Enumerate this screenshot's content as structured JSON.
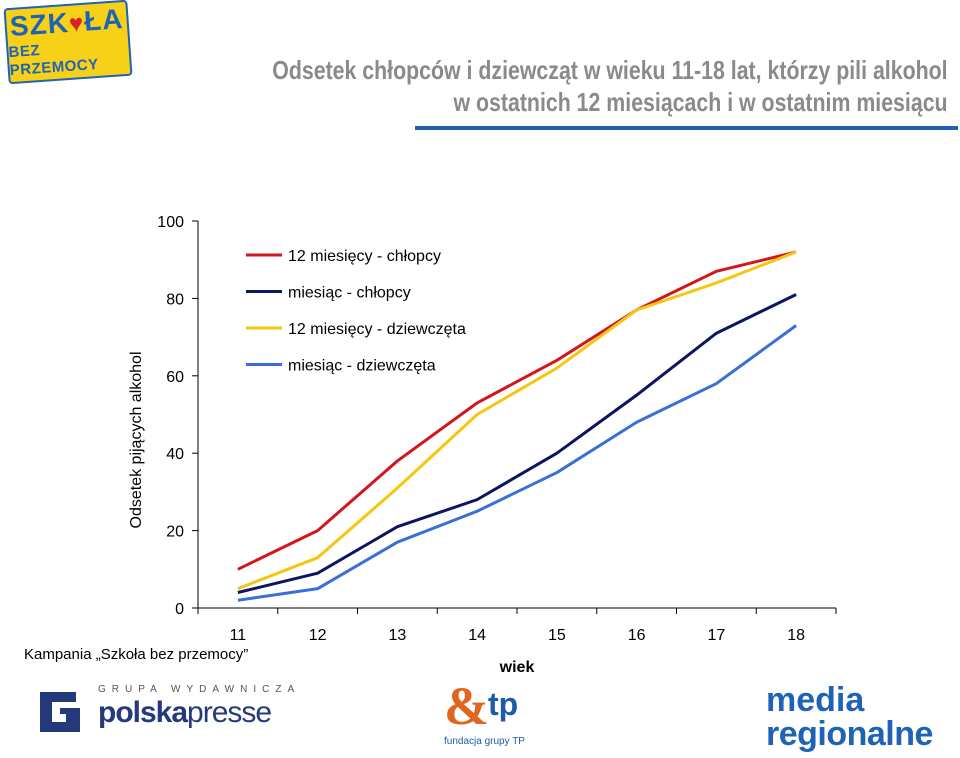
{
  "logos": {
    "szkola_line1": "SZK",
    "szkola_heart": "♥",
    "szkola_line1b": "ŁA",
    "szkola_line2": "BEZ PRZEMOCY",
    "polska_grupa": "GRUPA WYDAWNICZA",
    "polska_brand_a": "polska",
    "polska_brand_b": "presse",
    "tp_mark": "&",
    "tp_text": "tp",
    "tp_foundation": "fundacja grupy TP",
    "media_line1": "media",
    "media_line2": "regionalne"
  },
  "header": {
    "title_line1": "Odsetek chłopców i dziewcząt w wieku 11-18 lat, którzy pili alkohol",
    "title_line2": "w ostatnich 12 miesiącach i w ostatnim miesiącu"
  },
  "footer": {
    "campaign": "Kampania „Szkoła bez przemocy”"
  },
  "chart_data": {
    "type": "line",
    "ylabel": "Odsetek pijących alkohol",
    "xlabel": "wiek",
    "x": [
      11,
      12,
      13,
      14,
      15,
      16,
      17,
      18
    ],
    "ylim": [
      0,
      100
    ],
    "yticks": [
      0,
      20,
      40,
      60,
      80,
      100
    ],
    "grid": false,
    "legend_position": "top-left",
    "series": [
      {
        "name": "12 miesięcy - chłopcy",
        "color": "#d2161b",
        "values": [
          10,
          20,
          38,
          53,
          64,
          77,
          87,
          92
        ]
      },
      {
        "name": "miesiąc - chłopcy",
        "color": "#0c1560",
        "values": [
          4,
          9,
          21,
          28,
          40,
          55,
          71,
          81
        ]
      },
      {
        "name": "12 miesięcy - dziewczęta",
        "color": "#f5c614",
        "values": [
          5,
          13,
          31,
          50,
          62,
          77,
          84,
          92
        ]
      },
      {
        "name": "miesiąc - dziewczęta",
        "color": "#3a6fd8",
        "values": [
          2,
          5,
          17,
          25,
          35,
          48,
          58,
          73
        ]
      }
    ]
  }
}
